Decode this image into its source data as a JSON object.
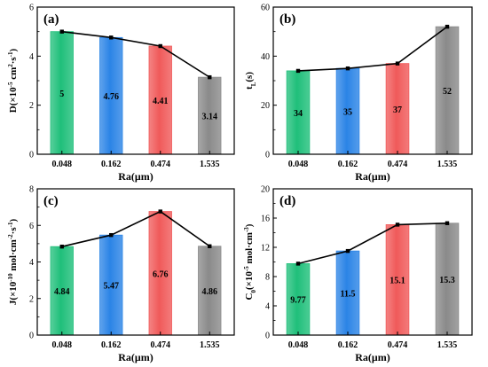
{
  "colors": {
    "green": "#1fbf7a",
    "blue": "#2b84e6",
    "red": "#f05a5a",
    "gray": "#8a8a8a",
    "line": "#000000"
  },
  "chart_data": [
    {
      "type": "bar",
      "panel_label": "(a)",
      "categories": [
        "0.048",
        "0.162",
        "0.474",
        "1.535"
      ],
      "values": [
        5,
        4.76,
        4.41,
        3.14
      ],
      "bar_labels": [
        "5",
        "4.76",
        "4.41",
        "3.14"
      ],
      "xlabel": "Ra(μm)",
      "ylabel_main": "D(×10",
      "ylabel_sup": "-5",
      "ylabel_rest": " cm",
      "ylabel_sup2": "2",
      "ylabel_end": "·s",
      "ylabel_sup3": "-1",
      "ylabel_close": ")",
      "ylim": [
        0,
        6
      ],
      "yticks": [
        "0",
        "2",
        "4",
        "6"
      ],
      "ytick_values": [
        0,
        2,
        4,
        6
      ],
      "overlay_line": true
    },
    {
      "type": "bar",
      "panel_label": "(b)",
      "categories": [
        "0.048",
        "0.162",
        "0.474",
        "1.535"
      ],
      "values": [
        34,
        35,
        37,
        52
      ],
      "bar_labels": [
        "34",
        "35",
        "37",
        "52"
      ],
      "xlabel": "Ra(μm)",
      "ylabel_main": "t",
      "ylabel_sub": "L",
      "ylabel_close": "(s)",
      "ylim": [
        0,
        60
      ],
      "yticks": [
        "0",
        "20",
        "40",
        "60"
      ],
      "ytick_values": [
        0,
        20,
        40,
        60
      ],
      "overlay_line": true
    },
    {
      "type": "bar",
      "panel_label": "(c)",
      "categories": [
        "0.048",
        "0.162",
        "0.474",
        "1.535"
      ],
      "values": [
        4.84,
        5.47,
        6.76,
        4.86
      ],
      "bar_labels": [
        "4.84",
        "5.47",
        "6.76",
        "4.86"
      ],
      "xlabel": "Ra(μm)",
      "ylabel_main": "J(×10",
      "ylabel_sup": "-10",
      "ylabel_rest": " mol·cm",
      "ylabel_sup2": "-2",
      "ylabel_end": "·s",
      "ylabel_sup3": "-1",
      "ylabel_close": ")",
      "ylim": [
        0,
        8
      ],
      "yticks": [
        "0",
        "2",
        "4",
        "6",
        "8"
      ],
      "ytick_values": [
        0,
        2,
        4,
        6,
        8
      ],
      "overlay_line": true
    },
    {
      "type": "bar",
      "panel_label": "(d)",
      "categories": [
        "0.048",
        "0.162",
        "0.474",
        "1.535"
      ],
      "values": [
        9.77,
        11.5,
        15.1,
        15.3
      ],
      "bar_labels": [
        "9.77",
        "11.5",
        "15.1",
        "15.3"
      ],
      "xlabel": "Ra(μm)",
      "ylabel_main": "C",
      "ylabel_sub": "0",
      "ylabel_rest": "(×10",
      "ylabel_sup2": "-5",
      "ylabel_end": " mol·cm",
      "ylabel_sup3": "-3",
      "ylabel_close": ")",
      "ylim": [
        0,
        20
      ],
      "yticks": [
        "0",
        "4",
        "8",
        "12",
        "16",
        "20"
      ],
      "ytick_values": [
        0,
        4,
        8,
        12,
        16,
        20
      ],
      "overlay_line": true
    }
  ]
}
